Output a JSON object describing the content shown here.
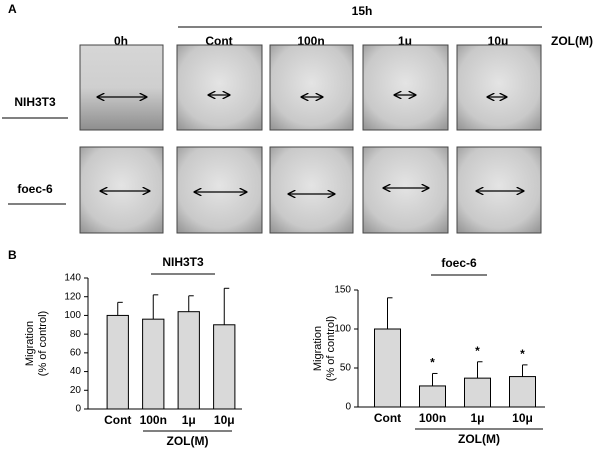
{
  "panel_a": {
    "label": "A",
    "time_label": "15h",
    "columns": [
      "0h",
      "Cont",
      "100n",
      "1μ",
      "10μ"
    ],
    "unit": "ZOL(M)",
    "rows": [
      "NIH3T3",
      "foec-6"
    ]
  },
  "panel_b": {
    "label": "B"
  },
  "chart_data": [
    {
      "type": "bar",
      "title": "NIH3T3",
      "ylabel": [
        "Migration",
        "(% of control)"
      ],
      "xlabel": "ZOL(M)",
      "categories": [
        "Cont",
        "100n",
        "1μ",
        "10μ"
      ],
      "values": [
        100,
        96,
        104,
        90
      ],
      "errors": [
        14,
        26,
        17,
        39
      ],
      "color": "#d9d9d9",
      "ylim": [
        0,
        140
      ],
      "yticks": [
        0,
        20,
        40,
        60,
        80,
        100,
        120,
        140
      ]
    },
    {
      "type": "bar",
      "title": "foec-6",
      "ylabel": [
        "Migration",
        "(% of control)"
      ],
      "xlabel": "ZOL(M)",
      "categories": [
        "Cont",
        "100n",
        "1μ",
        "10μ"
      ],
      "values": [
        100,
        27,
        37,
        39
      ],
      "errors": [
        40,
        16,
        21,
        15
      ],
      "markers": [
        null,
        "*",
        "*",
        "*"
      ],
      "color": "#d9d9d9",
      "ylim": [
        0,
        150
      ],
      "yticks": [
        0,
        50,
        100,
        150
      ]
    }
  ]
}
